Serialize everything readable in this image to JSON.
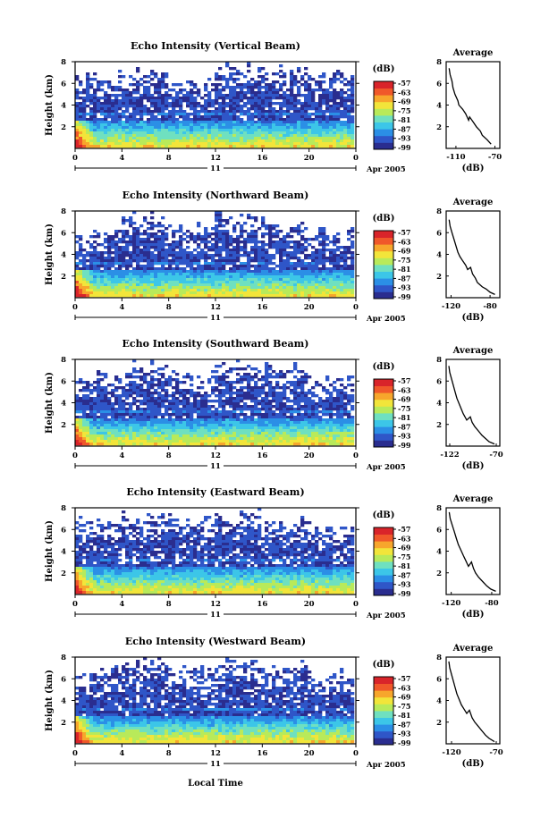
{
  "colorbar": {
    "unit": "(dB)",
    "ticks": [
      "-57",
      "-63",
      "-69",
      "-75",
      "-81",
      "-87",
      "-93",
      "-99"
    ],
    "colors": [
      "#2a2d8f",
      "#2f56c8",
      "#2b8fe6",
      "#3cc6e8",
      "#6fe0c0",
      "#b8ea5a",
      "#f2e53a",
      "#f7a62c",
      "#f0582a",
      "#d9242a"
    ]
  },
  "shared": {
    "xticks": [
      "0",
      "4",
      "8",
      "12",
      "16",
      "20",
      "0"
    ],
    "yticks": [
      "2",
      "4",
      "6",
      "8"
    ],
    "ylabel": "Height (km)",
    "day_label": "11",
    "date_label": "Apr 2005",
    "xlabel": "Local Time",
    "avg_title": "Average",
    "avg_xlabel": "(dB)"
  },
  "chart_data": [
    {
      "type": "heatmap",
      "title": "Echo Intensity (Vertical Beam)",
      "ylabel": "Height (km)",
      "x_range_hours": [
        0,
        24
      ],
      "ylim": [
        0,
        8
      ],
      "value_range_db": [
        -99,
        -57
      ],
      "noise_top_km": [
        5.6,
        6.0,
        5.2,
        6.4,
        6.0,
        5.4
      ],
      "average_profile": {
        "title": "Average",
        "xlabel": "(dB)",
        "xticks": [
          "-110",
          "-70"
        ],
        "xlim": [
          -120,
          -65
        ],
        "ylim": [
          0,
          8
        ],
        "x": [
          -117,
          -116,
          -114,
          -113,
          -111,
          -108,
          -107,
          -103,
          -100,
          -99,
          -97,
          -96,
          -92,
          -89,
          -85,
          -83,
          -78,
          -74
        ],
        "y": [
          7.4,
          6.8,
          6.2,
          5.6,
          5.0,
          4.4,
          4.0,
          3.6,
          3.2,
          3.0,
          2.6,
          2.9,
          2.4,
          2.0,
          1.6,
          1.2,
          0.8,
          0.4
        ]
      }
    },
    {
      "type": "heatmap",
      "title": "Echo Intensity (Northward Beam)",
      "ylabel": "Height (km)",
      "x_range_hours": [
        0,
        24
      ],
      "ylim": [
        0,
        8
      ],
      "value_range_db": [
        -99,
        -57
      ],
      "noise_top_km": [
        5.0,
        6.4,
        5.4,
        6.2,
        5.8,
        4.8
      ],
      "average_profile": {
        "title": "Average",
        "xlabel": "(dB)",
        "xticks": [
          "-120",
          "-80"
        ],
        "xlim": [
          -125,
          -70
        ],
        "ylim": [
          0,
          8
        ],
        "x": [
          -122,
          -121,
          -119,
          -117,
          -115,
          -113,
          -111,
          -108,
          -105,
          -103,
          -100,
          -98,
          -95,
          -93,
          -88,
          -84,
          -80,
          -75
        ],
        "y": [
          7.2,
          6.6,
          6.0,
          5.4,
          4.8,
          4.2,
          3.8,
          3.4,
          3.0,
          2.6,
          2.8,
          2.2,
          1.8,
          1.4,
          1.0,
          0.8,
          0.5,
          0.3
        ]
      }
    },
    {
      "type": "heatmap",
      "title": "Echo Intensity (Southward Beam)",
      "ylabel": "Height (km)",
      "x_range_hours": [
        0,
        24
      ],
      "ylim": [
        0,
        8
      ],
      "value_range_db": [
        -99,
        -57
      ],
      "noise_top_km": [
        5.2,
        6.2,
        5.6,
        6.6,
        6.0,
        5.0
      ],
      "average_profile": {
        "title": "Average",
        "xlabel": "(dB)",
        "xticks": [
          "-122",
          "-70"
        ],
        "xlim": [
          -126,
          -66
        ],
        "ylim": [
          0,
          8
        ],
        "x": [
          -123,
          -122,
          -120,
          -118,
          -116,
          -114,
          -111,
          -109,
          -107,
          -103,
          -99,
          -97,
          -94,
          -90,
          -86,
          -82,
          -78,
          -72
        ],
        "y": [
          7.4,
          6.8,
          6.2,
          5.6,
          5.0,
          4.4,
          3.8,
          3.4,
          3.0,
          2.4,
          2.7,
          2.2,
          1.8,
          1.4,
          1.0,
          0.7,
          0.4,
          0.2
        ]
      }
    },
    {
      "type": "heatmap",
      "title": "Echo Intensity (Eastward Beam)",
      "ylabel": "Height (km)",
      "x_range_hours": [
        0,
        24
      ],
      "ylim": [
        0,
        8
      ],
      "value_range_db": [
        -99,
        -57
      ],
      "noise_top_km": [
        5.4,
        6.0,
        5.8,
        6.2,
        5.6,
        5.0
      ],
      "average_profile": {
        "title": "Average",
        "xlabel": "(dB)",
        "xticks": [
          "-120",
          "-80"
        ],
        "xlim": [
          -125,
          -72
        ],
        "ylim": [
          0,
          8
        ],
        "x": [
          -122,
          -121,
          -119,
          -117,
          -115,
          -113,
          -110,
          -108,
          -106,
          -103,
          -100,
          -98,
          -96,
          -93,
          -89,
          -85,
          -81,
          -76
        ],
        "y": [
          7.6,
          7.0,
          6.4,
          5.8,
          5.2,
          4.6,
          4.0,
          3.6,
          3.2,
          2.6,
          3.0,
          2.4,
          2.0,
          1.6,
          1.2,
          0.8,
          0.5,
          0.3
        ]
      }
    },
    {
      "type": "heatmap",
      "title": "Echo Intensity (Westward Beam)",
      "ylabel": "Height (km)",
      "x_range_hours": [
        0,
        24
      ],
      "ylim": [
        0,
        8
      ],
      "value_range_db": [
        -99,
        -57
      ],
      "noise_top_km": [
        5.4,
        6.4,
        5.6,
        6.6,
        6.2,
        5.2
      ],
      "average_profile": {
        "title": "Average",
        "xlabel": "(dB)",
        "xticks": [
          "-120",
          "-70"
        ],
        "xlim": [
          -126,
          -66
        ],
        "ylim": [
          0,
          8
        ],
        "x": [
          -123,
          -122,
          -120,
          -118,
          -116,
          -114,
          -111,
          -109,
          -106,
          -103,
          -100,
          -97,
          -94,
          -90,
          -86,
          -82,
          -78,
          -72
        ],
        "y": [
          7.6,
          7.0,
          6.4,
          5.8,
          5.2,
          4.6,
          4.0,
          3.6,
          3.2,
          2.8,
          3.1,
          2.4,
          2.0,
          1.6,
          1.2,
          0.8,
          0.5,
          0.2
        ]
      }
    }
  ]
}
